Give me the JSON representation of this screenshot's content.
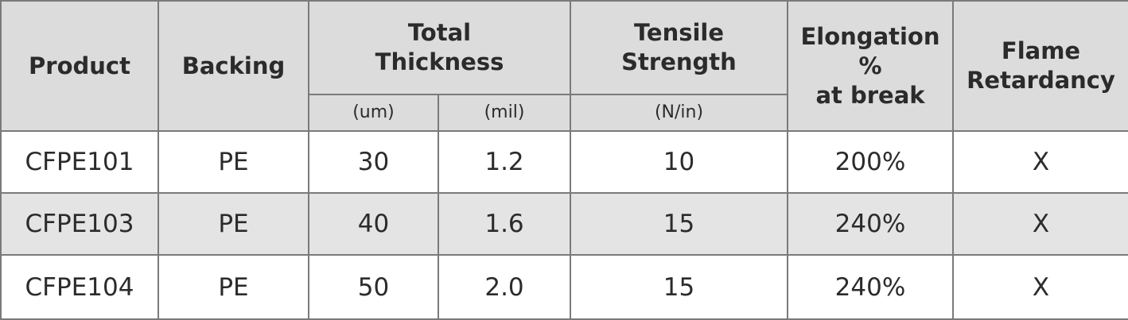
{
  "header": {
    "product": "Product",
    "backing": "Backing",
    "thickness_line1": "Total",
    "thickness_line2": "Thickness",
    "tensile_line1": "Tensile",
    "tensile_line2": "Strength",
    "elongation_line1": "Elongation %",
    "elongation_line2": "at break",
    "flame_line1": "Flame",
    "flame_line2": "Retardancy"
  },
  "units": {
    "um": "(um)",
    "mil": "(mil)",
    "n_per_in": "(N/in)"
  },
  "rows": [
    {
      "product": "CFPE101",
      "backing": "PE",
      "um": "30",
      "mil": "1.2",
      "tensile": "10",
      "elongation": "200%",
      "flame": "X"
    },
    {
      "product": "CFPE103",
      "backing": "PE",
      "um": "40",
      "mil": "1.6",
      "tensile": "15",
      "elongation": "240%",
      "flame": "X"
    },
    {
      "product": "CFPE104",
      "backing": "PE",
      "um": "50",
      "mil": "2.0",
      "tensile": "15",
      "elongation": "240%",
      "flame": "X"
    }
  ]
}
